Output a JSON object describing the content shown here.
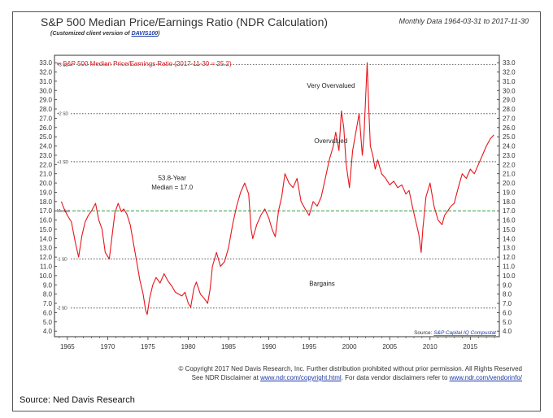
{
  "header": {
    "title": "S&P 500 Median Price/Earnings Ratio (NDR Calculation)",
    "subtitle_prefix": "(Customized client version of ",
    "subtitle_link": "DAVIS100",
    "subtitle_suffix": ")",
    "date_range": "Monthly Data 1964-03-31 to 2017-11-30"
  },
  "footer": {
    "copyright_line1": "© Copyright 2017 Ned Davis Research, Inc. Further distribution prohibited without prior permission. All Rights Reserved",
    "copyright_line2_a": "See NDR Disclaimer at ",
    "copyright_line2_link1": "www.ndr.com/copyright.html",
    "copyright_line2_b": ". For data vendor disclaimers refer to ",
    "copyright_line2_link2": "www.ndr.com/vendorinfo/",
    "source_note": "Source: Ned Davis Research"
  },
  "colors": {
    "series": "#e8141b",
    "median_line": "#2e9e3e",
    "sd_line": "#555555",
    "text": "#333333",
    "link": "#1a3aa8"
  },
  "chart_data": {
    "type": "line",
    "title": "S&P 500 Median Price/Earnings Ratio (NDR Calculation)",
    "legend_label": "S&P 500 Median Price/Earnings Ratio (2017-11-30 = 25.2)",
    "xlim": [
      1963.4,
      2018.6
    ],
    "ylim": [
      3.4,
      33.8
    ],
    "x_ticks": [
      1965,
      1970,
      1975,
      1980,
      1985,
      1990,
      1995,
      2000,
      2005,
      2010,
      2015
    ],
    "y_ticks": [
      4.0,
      5.0,
      6.0,
      7.0,
      8.0,
      9.0,
      10.0,
      11.0,
      12.0,
      13.0,
      14.0,
      15.0,
      16.0,
      17.0,
      18.0,
      19.0,
      20.0,
      21.0,
      22.0,
      23.0,
      24.0,
      25.0,
      26.0,
      27.0,
      28.0,
      29.0,
      30.0,
      31.0,
      32.0,
      33.0
    ],
    "median": {
      "value": 17.0,
      "label": "Median"
    },
    "sd_lines": [
      {
        "label": "+3 SD",
        "value": 32.8
      },
      {
        "label": "+2 SD",
        "value": 27.5
      },
      {
        "label": "+1 SD",
        "value": 22.3
      },
      {
        "label": "-1 SD",
        "value": 11.8
      },
      {
        "label": "-2 SD",
        "value": 6.5
      }
    ],
    "annotations": [
      {
        "text": "Very Overvalued",
        "x": 1997.7,
        "y": 30.3
      },
      {
        "text": "Overvalued",
        "x": 1997.7,
        "y": 24.3
      },
      {
        "text": "53.8-Year",
        "x": 1978.0,
        "y": 20.3
      },
      {
        "text": "Median = 17.0",
        "x": 1978.0,
        "y": 19.3
      },
      {
        "text": "Bargains",
        "x": 1996.6,
        "y": 8.9
      }
    ],
    "credit": {
      "prefix": "Source:",
      "text": "S&P Capital IQ Compustat"
    },
    "series": [
      {
        "name": "S&P 500 Median P/E",
        "x": [
          1964.25,
          1964.6,
          1965.0,
          1965.5,
          1966.0,
          1966.4,
          1966.8,
          1967.2,
          1967.6,
          1968.0,
          1968.5,
          1968.9,
          1969.3,
          1969.7,
          1970.2,
          1970.5,
          1970.9,
          1971.3,
          1971.7,
          1972.0,
          1972.4,
          1972.8,
          1973.2,
          1973.6,
          1974.0,
          1974.4,
          1974.7,
          1974.9,
          1975.2,
          1975.6,
          1976.0,
          1976.5,
          1977.0,
          1977.5,
          1978.0,
          1978.4,
          1978.8,
          1979.2,
          1979.6,
          1980.0,
          1980.3,
          1980.7,
          1981.0,
          1981.5,
          1982.0,
          1982.4,
          1982.7,
          1983.0,
          1983.5,
          1984.0,
          1984.5,
          1985.0,
          1985.5,
          1986.0,
          1986.5,
          1987.0,
          1987.5,
          1987.8,
          1988.0,
          1988.5,
          1989.0,
          1989.5,
          1990.0,
          1990.4,
          1990.8,
          1991.2,
          1991.6,
          1992.0,
          1992.5,
          1993.0,
          1993.5,
          1994.0,
          1994.5,
          1995.0,
          1995.5,
          1996.0,
          1996.5,
          1997.0,
          1997.5,
          1998.0,
          1998.3,
          1998.7,
          1999.0,
          1999.3,
          1999.6,
          2000.0,
          2000.4,
          2000.8,
          2001.2,
          2001.6,
          2001.8,
          2002.0,
          2002.2,
          2002.4,
          2002.6,
          2002.9,
          2003.2,
          2003.5,
          2004.0,
          2004.5,
          2005.0,
          2005.5,
          2006.0,
          2006.5,
          2007.0,
          2007.4,
          2007.8,
          2008.2,
          2008.6,
          2008.9,
          2009.1,
          2009.5,
          2010.0,
          2010.5,
          2011.0,
          2011.5,
          2011.8,
          2012.2,
          2012.6,
          2013.0,
          2013.5,
          2014.0,
          2014.5,
          2015.0,
          2015.5,
          2016.0,
          2016.5,
          2017.0,
          2017.5,
          2017.92
        ],
        "values": [
          18.0,
          17.2,
          16.5,
          15.8,
          13.5,
          12.0,
          14.3,
          15.8,
          16.5,
          17.0,
          17.8,
          16.0,
          15.0,
          12.5,
          11.8,
          14.0,
          16.8,
          17.8,
          16.9,
          17.2,
          16.6,
          15.5,
          13.5,
          11.5,
          9.5,
          8.0,
          6.3,
          5.8,
          7.5,
          9.0,
          9.8,
          9.2,
          10.2,
          9.4,
          8.8,
          8.2,
          8.0,
          7.8,
          8.2,
          7.0,
          6.6,
          8.6,
          9.3,
          8.0,
          7.5,
          7.0,
          8.5,
          11.0,
          12.5,
          11.0,
          11.5,
          13.0,
          15.5,
          17.5,
          19.0,
          20.0,
          18.8,
          15.0,
          14.0,
          15.5,
          16.5,
          17.2,
          16.2,
          15.0,
          14.2,
          17.0,
          18.5,
          21.0,
          20.0,
          19.5,
          20.5,
          18.0,
          17.2,
          16.5,
          18.0,
          17.5,
          18.5,
          20.5,
          22.5,
          24.0,
          25.5,
          23.5,
          27.8,
          26.0,
          22.0,
          19.5,
          23.5,
          25.5,
          27.5,
          23.0,
          25.0,
          29.0,
          33.0,
          28.0,
          24.0,
          23.0,
          21.5,
          22.5,
          21.0,
          20.5,
          19.8,
          20.2,
          19.5,
          19.8,
          18.8,
          19.2,
          17.5,
          16.0,
          14.5,
          12.5,
          15.0,
          18.5,
          20.0,
          17.5,
          16.0,
          15.5,
          16.5,
          17.0,
          17.5,
          17.8,
          19.5,
          21.0,
          20.5,
          21.5,
          21.0,
          22.0,
          23.0,
          24.0,
          24.8,
          25.2
        ]
      }
    ]
  }
}
